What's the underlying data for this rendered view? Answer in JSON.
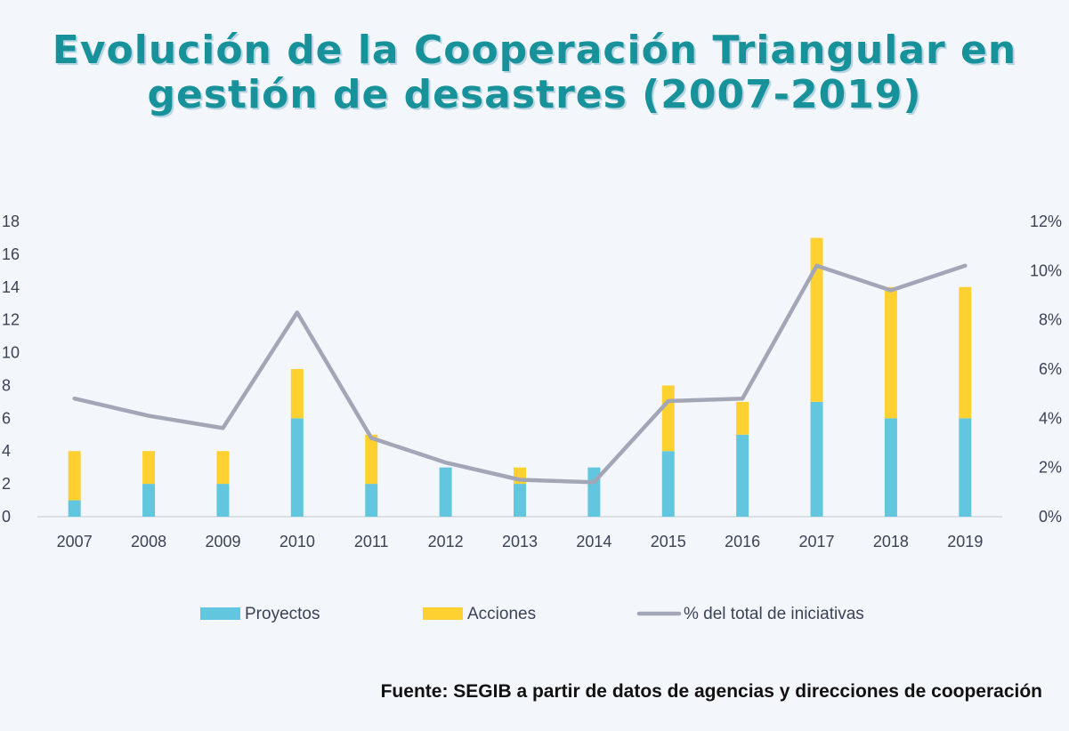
{
  "title": {
    "line1": "Evolución de la Cooperación Triangular en",
    "line2": "gestión de desastres (2007-2019)"
  },
  "source": "Fuente: SEGIB a partir de datos de agencias y direcciones de cooperación",
  "chart_data": {
    "type": "bar",
    "stacked": true,
    "title": "Evolución de la Cooperación Triangular en gestión de desastres (2007-2019)",
    "categories": [
      "2007",
      "2008",
      "2009",
      "2010",
      "2011",
      "2012",
      "2013",
      "2014",
      "2015",
      "2016",
      "2017",
      "2018",
      "2019"
    ],
    "series": [
      {
        "name": "Proyectos",
        "kind": "bar",
        "axis": "left",
        "color": "#62c7de",
        "values": [
          1,
          2,
          2,
          6,
          2,
          3,
          2,
          3,
          4,
          5,
          7,
          6,
          6
        ]
      },
      {
        "name": "Acciones",
        "kind": "bar",
        "axis": "left",
        "color": "#fed130",
        "values": [
          3,
          2,
          2,
          3,
          3,
          0,
          1,
          0,
          4,
          2,
          10,
          8,
          8
        ]
      },
      {
        "name": "% del total de iniciativas",
        "kind": "line",
        "axis": "right",
        "color": "#a3a6b6",
        "values": [
          4.8,
          4.1,
          3.6,
          8.3,
          3.2,
          2.2,
          1.5,
          1.4,
          4.7,
          4.8,
          10.2,
          9.2,
          10.2
        ]
      }
    ],
    "y_left": {
      "ylim": [
        0,
        18
      ],
      "ticks": [
        "0",
        "2",
        "4",
        "6",
        "8",
        "10",
        "12",
        "14",
        "16",
        "18"
      ]
    },
    "y_right": {
      "ylim": [
        0,
        12
      ],
      "ticks": [
        "0%",
        "2%",
        "4%",
        "6%",
        "8%",
        "10%",
        "12%"
      ]
    },
    "legend": {
      "position": "bottom"
    },
    "grid": false
  }
}
